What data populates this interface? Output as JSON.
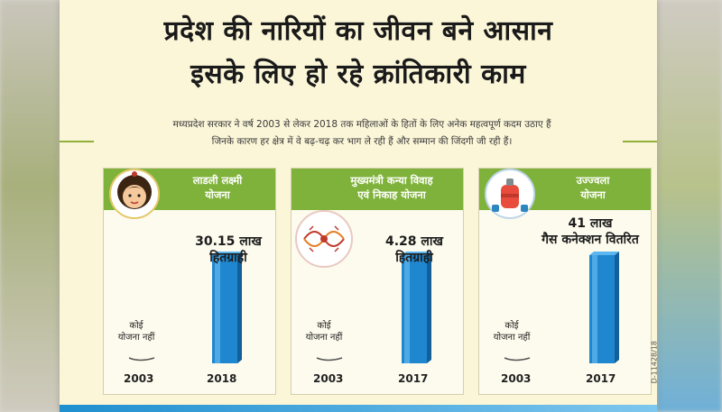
{
  "poster": {
    "title_line1": "प्रदेश की नारियों का जीवन बने आसान",
    "title_line2": "इसके लिए हो रहे क्रांतिकारी काम",
    "intro_line1": "मध्यप्रदेश सरकार ने वर्ष 2003 से लेकर 2018 तक महिलाओं के हितों के लिए अनेक महत्वपूर्ण कदम उठाए हैं",
    "intro_line2": "जिनके कारण हर क्षेत्र में वे बढ़-चढ़ कर भाग ले रही हैं और सम्मान की जिंदगी जी रही हैं।",
    "code": "D-11428/18",
    "accent_color": "#7fb23a",
    "bar_color": "#1f87d0"
  },
  "chart_data": [
    {
      "type": "bar",
      "title_lines": [
        "लाडली लक्ष्मी",
        "योजना"
      ],
      "icon": "girl-face-icon",
      "categories": [
        "2003",
        "2018"
      ],
      "values": [
        0,
        30.15
      ],
      "baseline_label_lines": [
        "कोई",
        "योजना नहीं"
      ],
      "value_label_lines": [
        "30.15 लाख",
        "हितग्राही"
      ]
    },
    {
      "type": "bar",
      "title_lines": [
        "मुख्यमंत्री कन्या विवाह",
        "एवं निकाह योजना"
      ],
      "icon": "wedding-knot-icon",
      "categories": [
        "2003",
        "2017"
      ],
      "values": [
        0,
        4.28
      ],
      "baseline_label_lines": [
        "कोई",
        "योजना नहीं"
      ],
      "value_label_lines": [
        "4.28 लाख",
        "हितग्राही"
      ]
    },
    {
      "type": "bar",
      "title_lines": [
        "उज्ज्वला",
        "योजना"
      ],
      "icon": "gas-cylinder-icon",
      "categories": [
        "2003",
        "2017"
      ],
      "values": [
        0,
        41
      ],
      "baseline_label_lines": [
        "कोई",
        "योजना नहीं"
      ],
      "value_label_lines": [
        "41 लाख",
        "गैस कनेक्शन वितरित"
      ]
    }
  ]
}
